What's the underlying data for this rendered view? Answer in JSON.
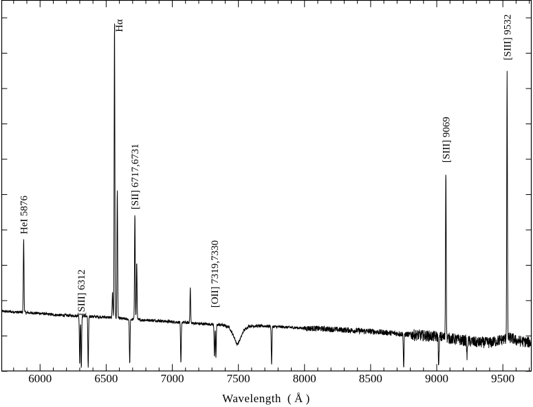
{
  "chart_data": {
    "type": "line",
    "title": "",
    "xlabel": "Wavelength ( Å )",
    "ylabel": "",
    "xlim": [
      5710,
      9715
    ],
    "ylim": [
      0,
      1.0
    ],
    "xticks": [
      6000,
      6500,
      7000,
      7500,
      8000,
      8500,
      9000,
      9500
    ],
    "xtick_labels": [
      "6000",
      "6500",
      "7000",
      "7500",
      "8000",
      "8500",
      "9000",
      "9500"
    ],
    "ytick_count": 10,
    "ytick_labels_shown": false,
    "grid": false,
    "legend": "none",
    "continuum": [
      [
        5710,
        0.17
      ],
      [
        5800,
        0.168
      ],
      [
        5900,
        0.166
      ],
      [
        6000,
        0.164
      ],
      [
        6100,
        0.16
      ],
      [
        6200,
        0.158
      ],
      [
        6300,
        0.157
      ],
      [
        6400,
        0.155
      ],
      [
        6500,
        0.153
      ],
      [
        6600,
        0.15
      ],
      [
        6700,
        0.146
      ],
      [
        6800,
        0.145
      ],
      [
        6900,
        0.143
      ],
      [
        7000,
        0.14
      ],
      [
        7100,
        0.138
      ],
      [
        7200,
        0.135
      ],
      [
        7300,
        0.133
      ],
      [
        7380,
        0.131
      ],
      [
        7430,
        0.125
      ],
      [
        7470,
        0.095
      ],
      [
        7490,
        0.075
      ],
      [
        7510,
        0.088
      ],
      [
        7540,
        0.115
      ],
      [
        7580,
        0.128
      ],
      [
        7700,
        0.128
      ],
      [
        7800,
        0.126
      ],
      [
        7900,
        0.124
      ],
      [
        8000,
        0.122
      ],
      [
        8100,
        0.121
      ],
      [
        8200,
        0.119
      ],
      [
        8300,
        0.117
      ],
      [
        8400,
        0.115
      ],
      [
        8500,
        0.113
      ],
      [
        8600,
        0.11
      ],
      [
        8700,
        0.107
      ],
      [
        8800,
        0.104
      ],
      [
        8900,
        0.101
      ],
      [
        9000,
        0.098
      ],
      [
        9050,
        0.096
      ],
      [
        9150,
        0.09
      ],
      [
        9250,
        0.085
      ],
      [
        9300,
        0.082
      ],
      [
        9400,
        0.081
      ],
      [
        9500,
        0.09
      ],
      [
        9560,
        0.095
      ],
      [
        9600,
        0.087
      ],
      [
        9715,
        0.081
      ]
    ],
    "lines": [
      {
        "wavelength": 5876,
        "peak": 0.375
      },
      {
        "wavelength": 6300,
        "peak": 0.02
      },
      {
        "wavelength": 6312,
        "peak": 0.01
      },
      {
        "wavelength": 6364,
        "peak": 0.008
      },
      {
        "wavelength": 6548,
        "peak": 0.228
      },
      {
        "wavelength": 6563,
        "peak": 1.0
      },
      {
        "wavelength": 6584,
        "peak": 0.52
      },
      {
        "wavelength": 6678,
        "peak": 0.02
      },
      {
        "wavelength": 6717,
        "peak": 0.45
      },
      {
        "wavelength": 6731,
        "peak": 0.31
      },
      {
        "wavelength": 7065,
        "peak": 0.02
      },
      {
        "wavelength": 7136,
        "peak": 0.235
      },
      {
        "wavelength": 7319,
        "peak": 0.04
      },
      {
        "wavelength": 7330,
        "peak": 0.04
      },
      {
        "wavelength": 7751,
        "peak": 0.02
      },
      {
        "wavelength": 8750,
        "peak": 0.01
      },
      {
        "wavelength": 9015,
        "peak": 0.01
      },
      {
        "wavelength": 9069,
        "peak": 0.58
      },
      {
        "wavelength": 9229,
        "peak": 0.04
      },
      {
        "wavelength": 9532,
        "peak": 0.84
      }
    ],
    "annotations": [
      {
        "text": "HeI 5876",
        "x": 5876,
        "y": 0.388
      },
      {
        "text": "[SIII] 6312",
        "x": 6312,
        "y": 0.158
      },
      {
        "text": "Hα",
        "x": 6597,
        "y": 0.996
      },
      {
        "text": "[SII] 6717,6731",
        "x": 6717,
        "y": 0.458
      },
      {
        "text": "[OII] 7319,7330",
        "x": 7319,
        "y": 0.18
      },
      {
        "text": "[SIII] 9069",
        "x": 9069,
        "y": 0.59
      },
      {
        "text": "[SIII] 9532",
        "x": 9532,
        "y": 0.88
      }
    ]
  }
}
